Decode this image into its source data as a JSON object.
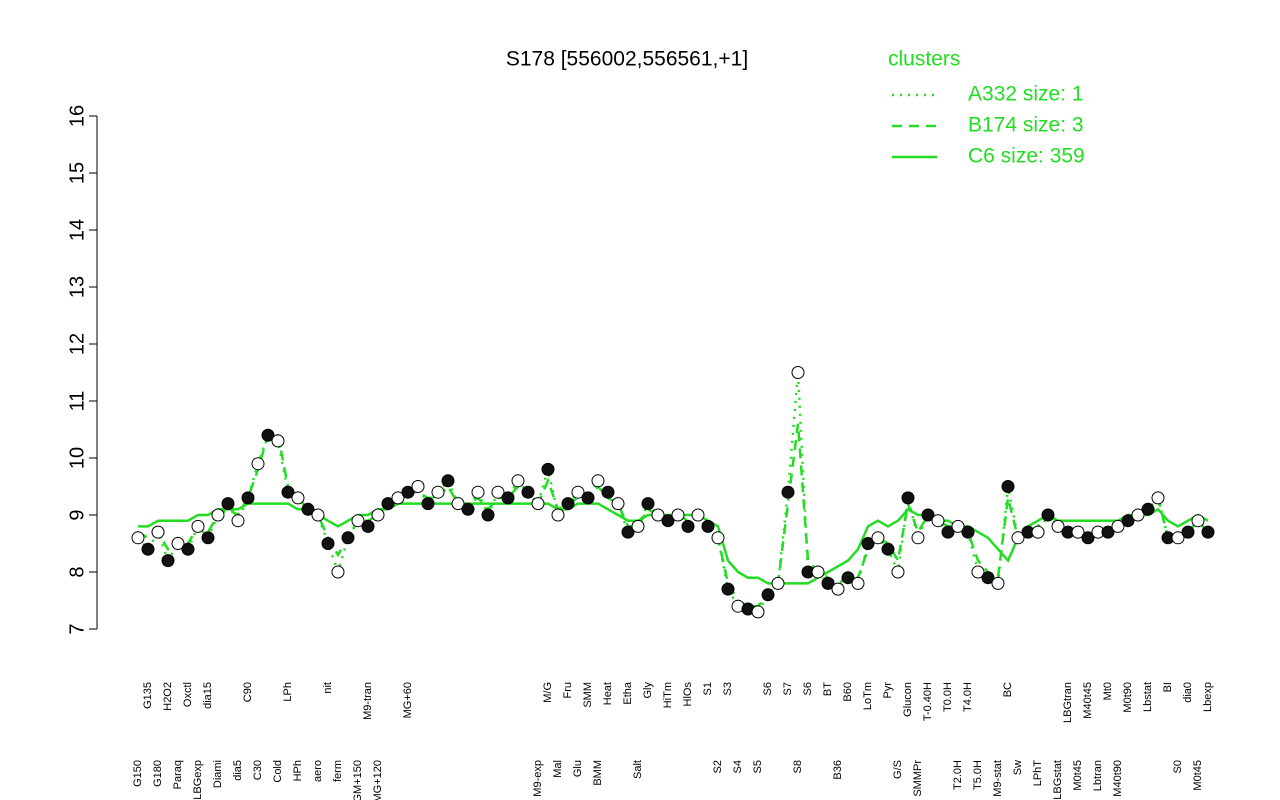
{
  "chart_data": {
    "type": "line",
    "title": "S178 [556002,556561,+1]",
    "legend_title": "clusters",
    "legend": "top-right",
    "ylim": [
      7,
      16
    ],
    "yticks": [
      7,
      8,
      9,
      10,
      11,
      12,
      13,
      14,
      15,
      16
    ],
    "categories": [
      "G150",
      "G135",
      "G180",
      "H2O2",
      "Paraq",
      "Oxctl",
      "LBGexp",
      "dia15",
      "Diami",
      null,
      "dia5",
      "C90",
      "C30",
      null,
      "Cold",
      "LPh",
      "HPh",
      null,
      "aero",
      "nit",
      "ferm",
      null,
      "GM+150",
      "M9-tran",
      "MG+120",
      null,
      null,
      "MG+60",
      null,
      null,
      null,
      null,
      null,
      null,
      null,
      null,
      null,
      null,
      null,
      null,
      "M9-exp",
      "M/G",
      "Mal",
      "Fru",
      "Glu",
      "SMM",
      "BMM",
      "Heat",
      null,
      "Etha",
      "Salt",
      "Gly",
      null,
      "HiTm",
      null,
      "HlOs",
      null,
      "S1",
      "S2",
      "S3",
      "S4",
      null,
      "S5",
      "S6",
      null,
      "S7",
      "S8",
      "S6",
      null,
      "BT",
      "B36",
      "B60",
      null,
      "LoTm",
      null,
      "Pyr",
      "G/S",
      "Glucon",
      "SMMPr",
      "T-0.40H",
      null,
      "T0.0H",
      "T2.0H",
      "T4.0H",
      "T5.0H",
      null,
      "M9-stat",
      "BC",
      "Sw",
      null,
      "LPhT",
      null,
      "LBGstat",
      "LBGtran",
      "M0t45",
      "M40t45",
      "Lbtran",
      "Mt0",
      "M40t90",
      "M0t90",
      null,
      "Lbstat",
      null,
      "BI",
      "S0",
      "dia0",
      "M0t45",
      "Lbexp"
    ],
    "series": [
      {
        "name": "A332 size: 1",
        "color": "#22dd22",
        "dash": "dotted",
        "markers": true,
        "values": [
          8.6,
          8.4,
          8.7,
          8.2,
          8.5,
          8.4,
          8.8,
          8.6,
          9.0,
          9.2,
          8.9,
          9.3,
          9.9,
          10.4,
          10.3,
          9.4,
          9.3,
          9.1,
          9.0,
          8.5,
          8.0,
          8.6,
          8.9,
          8.8,
          9.0,
          9.2,
          9.3,
          9.4,
          9.5,
          9.2,
          9.4,
          9.6,
          9.2,
          9.1,
          9.4,
          9.0,
          9.4,
          9.3,
          9.6,
          9.4,
          9.2,
          9.8,
          9.0,
          9.2,
          9.4,
          9.3,
          9.6,
          9.4,
          9.2,
          8.7,
          8.8,
          9.2,
          9.0,
          8.9,
          9.0,
          8.8,
          9.0,
          8.8,
          8.6,
          7.7,
          7.4,
          7.35,
          7.3,
          7.6,
          7.8,
          9.4,
          11.5,
          8.0,
          8.0,
          7.8,
          7.7,
          7.9,
          7.8,
          8.5,
          8.6,
          8.4,
          8.0,
          9.3,
          8.6,
          9.0,
          8.9,
          8.7,
          8.8,
          8.7,
          8.0,
          7.9,
          7.8,
          9.5,
          8.6,
          8.7,
          8.7,
          9.0,
          8.8,
          8.7,
          8.7,
          8.6,
          8.7,
          8.7,
          8.8,
          8.9,
          9.0,
          9.1,
          9.3,
          8.6,
          8.6,
          8.7,
          8.9,
          8.7
        ]
      },
      {
        "name": "B174 size: 3",
        "color": "#22dd22",
        "dash": "dashed",
        "values": [
          8.7,
          8.6,
          8.7,
          8.4,
          8.6,
          8.5,
          8.8,
          8.7,
          9.0,
          9.1,
          9.0,
          9.3,
          9.8,
          10.4,
          10.4,
          9.5,
          9.3,
          9.1,
          9.0,
          8.6,
          8.3,
          8.6,
          8.9,
          8.9,
          9.0,
          9.2,
          9.3,
          9.4,
          9.4,
          9.3,
          9.3,
          9.5,
          9.2,
          9.2,
          9.3,
          9.1,
          9.3,
          9.3,
          9.5,
          9.4,
          9.2,
          9.6,
          9.1,
          9.2,
          9.3,
          9.3,
          9.5,
          9.3,
          9.2,
          8.8,
          8.8,
          9.1,
          9.0,
          8.9,
          9.0,
          8.9,
          9.0,
          8.8,
          8.6,
          7.8,
          7.5,
          7.4,
          7.4,
          7.6,
          7.8,
          9.2,
          10.6,
          8.2,
          8.0,
          7.9,
          7.8,
          7.9,
          7.9,
          8.4,
          8.6,
          8.5,
          8.2,
          9.2,
          8.7,
          9.0,
          8.9,
          8.8,
          8.8,
          8.7,
          8.2,
          8.0,
          7.9,
          9.3,
          8.6,
          8.7,
          8.8,
          9.0,
          8.8,
          8.7,
          8.7,
          8.6,
          8.7,
          8.7,
          8.8,
          8.9,
          9.0,
          9.1,
          9.3,
          8.6,
          8.6,
          8.7,
          8.9,
          8.7
        ]
      },
      {
        "name": "C6 size: 359",
        "color": "#22dd22",
        "dash": "solid",
        "values": [
          8.8,
          8.8,
          8.9,
          8.9,
          8.9,
          8.9,
          9.0,
          9.0,
          9.1,
          9.1,
          9.1,
          9.2,
          9.2,
          9.2,
          9.2,
          9.2,
          9.1,
          9.1,
          9.0,
          8.9,
          8.8,
          8.9,
          9.0,
          9.0,
          9.1,
          9.1,
          9.2,
          9.2,
          9.2,
          9.2,
          9.2,
          9.2,
          9.2,
          9.2,
          9.2,
          9.2,
          9.2,
          9.2,
          9.2,
          9.2,
          9.2,
          9.2,
          9.1,
          9.1,
          9.2,
          9.2,
          9.2,
          9.1,
          9.0,
          8.9,
          8.9,
          9.0,
          9.0,
          9.0,
          9.0,
          9.0,
          9.0,
          8.9,
          8.8,
          8.2,
          8.0,
          7.9,
          7.9,
          7.8,
          7.8,
          7.8,
          7.8,
          7.8,
          7.9,
          8.0,
          8.1,
          8.2,
          8.4,
          8.8,
          8.9,
          8.8,
          8.9,
          9.1,
          9.0,
          9.0,
          8.9,
          8.9,
          8.8,
          8.8,
          8.7,
          8.6,
          8.4,
          8.2,
          8.6,
          8.8,
          8.9,
          9.0,
          8.9,
          8.9,
          8.9,
          8.9,
          8.9,
          8.9,
          8.9,
          9.0,
          9.0,
          9.0,
          9.1,
          8.9,
          8.8,
          8.9,
          9.0,
          8.9
        ]
      }
    ]
  }
}
